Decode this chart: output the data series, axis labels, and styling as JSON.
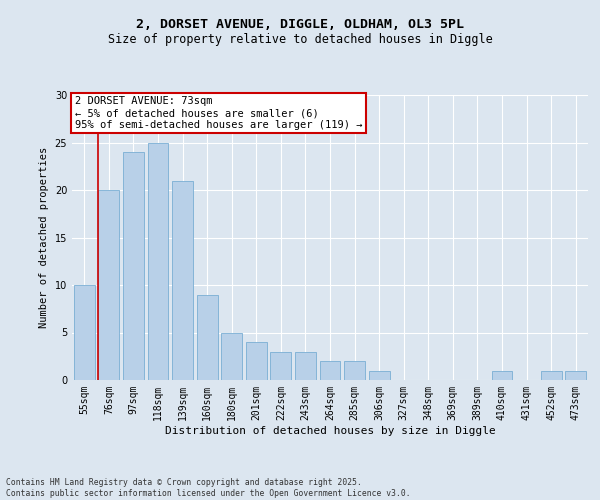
{
  "title_line1": "2, DORSET AVENUE, DIGGLE, OLDHAM, OL3 5PL",
  "title_line2": "Size of property relative to detached houses in Diggle",
  "xlabel": "Distribution of detached houses by size in Diggle",
  "ylabel": "Number of detached properties",
  "categories": [
    "55sqm",
    "76sqm",
    "97sqm",
    "118sqm",
    "139sqm",
    "160sqm",
    "180sqm",
    "201sqm",
    "222sqm",
    "243sqm",
    "264sqm",
    "285sqm",
    "306sqm",
    "327sqm",
    "348sqm",
    "369sqm",
    "389sqm",
    "410sqm",
    "431sqm",
    "452sqm",
    "473sqm"
  ],
  "values": [
    10,
    20,
    24,
    25,
    21,
    9,
    5,
    4,
    3,
    3,
    2,
    2,
    1,
    0,
    0,
    0,
    0,
    1,
    0,
    1,
    1
  ],
  "bar_color": "#b8d0e8",
  "bar_edge_color": "#7aaed4",
  "highlight_color": "#cc0000",
  "annotation_text": "2 DORSET AVENUE: 73sqm\n← 5% of detached houses are smaller (6)\n95% of semi-detached houses are larger (119) →",
  "annotation_box_color": "#ffffff",
  "annotation_box_edge_color": "#cc0000",
  "ylim": [
    0,
    30
  ],
  "yticks": [
    0,
    5,
    10,
    15,
    20,
    25,
    30
  ],
  "background_color": "#dce6f0",
  "plot_bg_color": "#dce6f0",
  "grid_color": "#ffffff",
  "footer_text": "Contains HM Land Registry data © Crown copyright and database right 2025.\nContains public sector information licensed under the Open Government Licence v3.0.",
  "title_fontsize": 9.5,
  "subtitle_fontsize": 8.5,
  "xlabel_fontsize": 8,
  "ylabel_fontsize": 7.5,
  "tick_fontsize": 7,
  "annotation_fontsize": 7.5,
  "footer_fontsize": 5.8
}
